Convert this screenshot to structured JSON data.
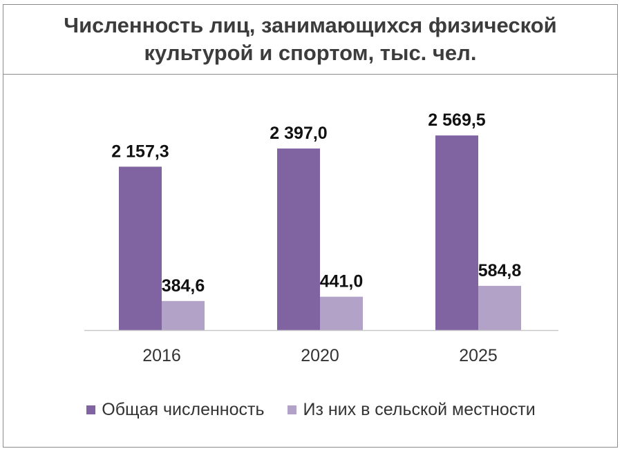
{
  "chart_data": {
    "type": "bar",
    "title": "Численность лиц, занимающихся физической культурой и спортом, тыс. чел.",
    "categories": [
      "2016",
      "2020",
      "2025"
    ],
    "series": [
      {
        "name": "Общая численность",
        "values": [
          2157.3,
          2397.0,
          2569.5
        ],
        "labels": [
          "2 157,3",
          "2 397,0",
          "2 569,5"
        ],
        "color": "#8064a2"
      },
      {
        "name": "Из них в сельской местности",
        "values": [
          384.6,
          441.0,
          584.8
        ],
        "labels": [
          "384,6",
          "441,0",
          "584,8"
        ],
        "color": "#b3a2c7"
      }
    ],
    "ylim": [
      0,
      2800
    ],
    "grid": false,
    "legend_position": "bottom"
  }
}
